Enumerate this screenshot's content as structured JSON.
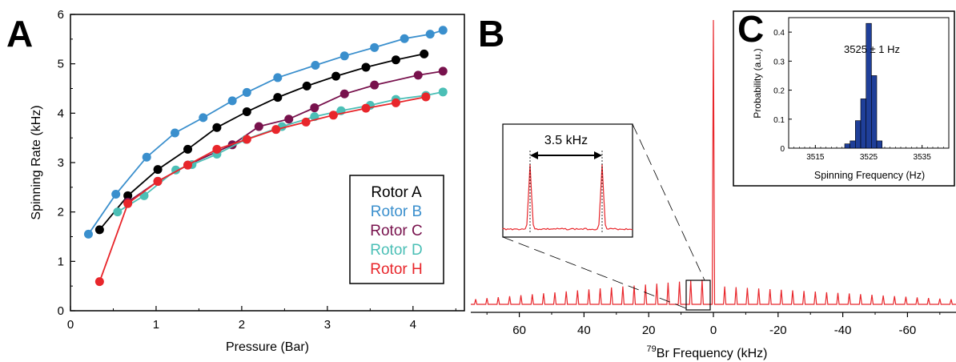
{
  "chart_data": [
    {
      "panel": "A",
      "type": "line",
      "xlabel": "Pressure (Bar)",
      "ylabel": "Spinning Rate  (kHz)",
      "xlim": [
        0,
        4.6
      ],
      "ylim": [
        0,
        6
      ],
      "xticks": [
        "0",
        "1",
        "2",
        "3",
        "4"
      ],
      "yticks": [
        "0",
        "1",
        "2",
        "3",
        "4",
        "5",
        "6"
      ],
      "legend_position": "bottom-right",
      "series": [
        {
          "name": "Rotor A",
          "color": "#000000",
          "x": [
            0.34,
            0.67,
            1.02,
            1.37,
            1.71,
            2.06,
            2.42,
            2.76,
            3.1,
            3.45,
            3.8,
            4.13
          ],
          "y": [
            1.64,
            2.33,
            2.86,
            3.27,
            3.71,
            4.03,
            4.32,
            4.55,
            4.75,
            4.93,
            5.08,
            5.2
          ]
        },
        {
          "name": "Rotor B",
          "color": "#3a8fcd",
          "x": [
            0.21,
            0.53,
            0.89,
            1.22,
            1.55,
            1.89,
            2.06,
            2.42,
            2.86,
            3.2,
            3.55,
            3.9,
            4.2,
            4.35
          ],
          "y": [
            1.55,
            2.36,
            3.11,
            3.6,
            3.91,
            4.25,
            4.42,
            4.72,
            4.97,
            5.16,
            5.33,
            5.51,
            5.6,
            5.68
          ]
        },
        {
          "name": "Rotor C",
          "color": "#78124d",
          "x": [
            0.67,
            1.02,
            1.37,
            1.71,
            1.89,
            2.2,
            2.55,
            2.85,
            3.2,
            3.55,
            4.06,
            4.35
          ],
          "y": [
            2.2,
            2.62,
            2.95,
            3.22,
            3.36,
            3.73,
            3.88,
            4.11,
            4.39,
            4.57,
            4.77,
            4.85
          ]
        },
        {
          "name": "Rotor D",
          "color": "#4bbfb6",
          "x": [
            0.55,
            0.86,
            1.23,
            1.42,
            1.71,
            2.05,
            2.47,
            2.85,
            3.16,
            3.5,
            3.8,
            4.15,
            4.35
          ],
          "y": [
            2.0,
            2.33,
            2.85,
            2.96,
            3.17,
            3.47,
            3.73,
            3.93,
            4.05,
            4.16,
            4.28,
            4.36,
            4.43
          ]
        },
        {
          "name": "Rotor H",
          "color": "#e8262b",
          "x": [
            0.34,
            0.67,
            1.02,
            1.37,
            1.71,
            2.06,
            2.4,
            2.75,
            3.07,
            3.45,
            3.8,
            4.15
          ],
          "y": [
            0.59,
            2.17,
            2.62,
            2.95,
            3.27,
            3.47,
            3.67,
            3.82,
            3.96,
            4.1,
            4.21,
            4.33
          ]
        }
      ]
    },
    {
      "panel": "B",
      "type": "line",
      "xlabel_prefix": "79",
      "xlabel": "Br Frequency (kHz)",
      "xlim": [
        75,
        -75
      ],
      "xticks": [
        "60",
        "40",
        "20",
        "0",
        "-20",
        "-40",
        "-60"
      ],
      "color": "#e8262b",
      "spinning_sideband_spacing_khz": 3.5,
      "inset_label": "3.5 kHz",
      "inset_peaks_khz": [
        7,
        3.5
      ]
    },
    {
      "panel": "C",
      "type": "bar",
      "xlabel": "Spinning Frequency (Hz)",
      "ylabel": "Probability (a.u.)",
      "annotation": "3525 ± 1 Hz",
      "xlim": [
        3510,
        3540
      ],
      "ylim": [
        0,
        0.45
      ],
      "xticks": [
        "3515",
        "3525",
        "3535"
      ],
      "yticks": [
        "0",
        "0.1",
        "0.2",
        "0.3",
        "0.4"
      ],
      "bar_color": "#1f3f99",
      "bins": [
        3521,
        3522,
        3523,
        3524,
        3525,
        3526,
        3527
      ],
      "values": [
        0.015,
        0.025,
        0.095,
        0.17,
        0.43,
        0.25,
        0.025
      ]
    }
  ]
}
